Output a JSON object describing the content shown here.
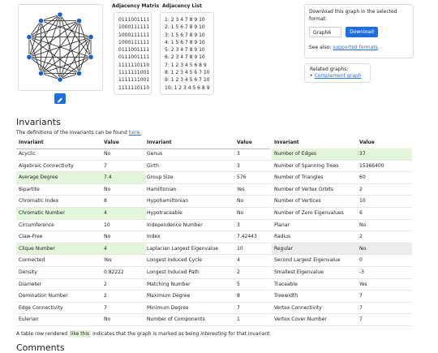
{
  "graph_panel": {
    "adjacency_matrix_title": "Adjacency Matrix",
    "adjacency_list_title": "Adjacency List",
    "adjacency_matrix": [
      "0111001111",
      "1000111111",
      "1000111111",
      "1000111111",
      "0111001111",
      "0111001111",
      "1111110110",
      "1111111001",
      "1111111001",
      "1111110110"
    ],
    "adjacency_list": [
      "1: 2 3 4 7 8 9 10",
      "2: 1 5 6 7 8 9 10",
      "3: 1 5 6 7 8 9 10",
      "4: 1 5 6 7 8 9 10",
      "5: 2 3 4 7 8 9 10",
      "6: 2 3 4 7 8 9 10",
      "7: 1 2 3 4 5 6 8 9",
      "8: 1 2 3 4 5 6 7 10",
      "9: 1 2 3 4 5 6 7 10",
      "10: 1 2 3 4 5 6 8 9"
    ]
  },
  "download": {
    "text": "Download this graph in the selected format:",
    "format": "Graph6",
    "button": "Download",
    "see_also": "See also:",
    "see_also_link": "supported formats"
  },
  "related": {
    "title": "Related graphs:",
    "link": "Complement graph"
  },
  "invariants": {
    "title": "Invariants",
    "intro": "The definitions of the invariants can be found",
    "intro_link": "here.",
    "tables": [
      {
        "headers": [
          "Invariant",
          "Value"
        ],
        "highlighted_rows": [
          2,
          5,
          8
        ],
        "grey_rows": [],
        "rows": [
          [
            "Acyclic",
            "No"
          ],
          [
            "Algebraic Connectivity",
            "7"
          ],
          [
            "Average Degree",
            "7.4"
          ],
          [
            "Bipartite",
            "No"
          ],
          [
            "Chromatic Index",
            "8"
          ],
          [
            "Chromatic Number",
            "4"
          ],
          [
            "Circumference",
            "10"
          ],
          [
            "Claw-Free",
            "No"
          ],
          [
            "Clique Number",
            "4"
          ],
          [
            "Connected",
            "Yes"
          ],
          [
            "Density",
            "0.82222"
          ],
          [
            "Diameter",
            "2"
          ],
          [
            "Domination Number",
            "2"
          ],
          [
            "Edge Connectivity",
            "7"
          ],
          [
            "Eulerian",
            "No"
          ]
        ]
      },
      {
        "headers": [
          "Invariant",
          "Value"
        ],
        "highlighted_rows": [],
        "grey_rows": [],
        "rows": [
          [
            "Genus",
            "3"
          ],
          [
            "Girth",
            "3"
          ],
          [
            "Group Size",
            "576"
          ],
          [
            "Hamiltonian",
            "Yes"
          ],
          [
            "Hypohamiltonian",
            "No"
          ],
          [
            "Hypotraceable",
            "No"
          ],
          [
            "Independence Number",
            "3"
          ],
          [
            "Index",
            "7.42443"
          ],
          [
            "Laplacian Largest Eigenvalue",
            "10"
          ],
          [
            "Longest Induced Cycle",
            "4"
          ],
          [
            "Longest Induced Path",
            "2"
          ],
          [
            "Matching Number",
            "5"
          ],
          [
            "Maximum Degree",
            "8"
          ],
          [
            "Minimum Degree",
            "7"
          ],
          [
            "Number of Components",
            "1"
          ]
        ]
      },
      {
        "headers": [
          "Invariant",
          "Value"
        ],
        "highlighted_rows": [
          0
        ],
        "grey_rows": [
          8
        ],
        "rows": [
          [
            "Number of Edges",
            "37"
          ],
          [
            "Number of Spanning Trees",
            "15366400"
          ],
          [
            "Number of Triangles",
            "60"
          ],
          [
            "Number of Vertex Orbits",
            "2"
          ],
          [
            "Number of Vertices",
            "10"
          ],
          [
            "Number of Zero Eigenvalues",
            "6"
          ],
          [
            "Planar",
            "No"
          ],
          [
            "Radius",
            "2"
          ],
          [
            "Regular",
            "No"
          ],
          [
            "Second Largest Eigenvalue",
            "0"
          ],
          [
            "Smallest Eigenvalue",
            "-3"
          ],
          [
            "Traceable",
            "Yes"
          ],
          [
            "Treewidth",
            "7"
          ],
          [
            "Vertex Connectivity",
            "7"
          ],
          [
            "Vertex Cover Number",
            "7"
          ]
        ]
      }
    ],
    "footnote": [
      "A table row rendered",
      "like this",
      "indicates that the graph is marked as being",
      "interesting",
      "for that invariant."
    ]
  },
  "comments": {
    "title": "Comments"
  }
}
